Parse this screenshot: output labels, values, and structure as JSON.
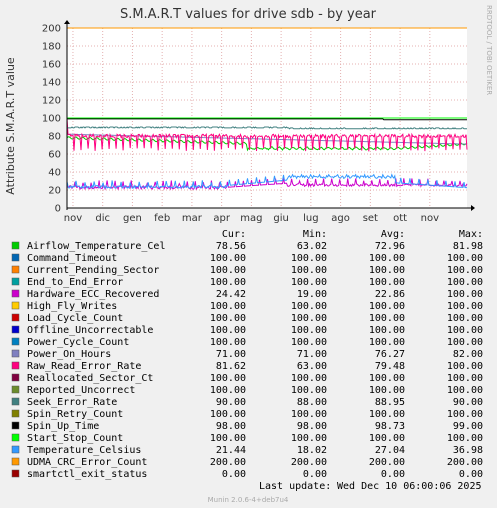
{
  "chart_data": {
    "type": "line",
    "title": "S.M.A.R.T values for drive sdb - by year",
    "ylabel": "Attribute S.M.A.R.T value",
    "xlabel": "",
    "ylim": [
      0,
      200
    ],
    "yticks": [
      0,
      20,
      40,
      60,
      80,
      100,
      120,
      140,
      160,
      180,
      200
    ],
    "grid": true,
    "months": [
      "nov",
      "dic",
      "gen",
      "feb",
      "mar",
      "apr",
      "mag",
      "giu",
      "lug",
      "ago",
      "set",
      "ott",
      "nov"
    ],
    "watermark": "RRDTOOL / TOBI OETIKER",
    "legend_headers": [
      "Cur:",
      "Min:",
      "Avg:",
      "Max:"
    ],
    "series": [
      {
        "name": "Airflow_Temperature_Cel",
        "color": "#00cc00",
        "cur": "78.56",
        "min": "63.02",
        "avg": "72.96",
        "max": "81.98"
      },
      {
        "name": "Command_Timeout",
        "color": "#0066b3",
        "cur": "100.00",
        "min": "100.00",
        "avg": "100.00",
        "max": "100.00"
      },
      {
        "name": "Current_Pending_Sector",
        "color": "#ff8000",
        "cur": "100.00",
        "min": "100.00",
        "avg": "100.00",
        "max": "100.00"
      },
      {
        "name": "End_to_End_Error",
        "color": "#00a0a0",
        "cur": "100.00",
        "min": "100.00",
        "avg": "100.00",
        "max": "100.00"
      },
      {
        "name": "Hardware_ECC_Recovered",
        "color": "#cc00cc",
        "cur": "24.42",
        "min": "19.00",
        "avg": "22.86",
        "max": "100.00"
      },
      {
        "name": "High_Fly_Writes",
        "color": "#ffcc00",
        "cur": "100.00",
        "min": "100.00",
        "avg": "100.00",
        "max": "100.00"
      },
      {
        "name": "Load_Cycle_Count",
        "color": "#cc0000",
        "cur": "100.00",
        "min": "100.00",
        "avg": "100.00",
        "max": "100.00"
      },
      {
        "name": "Offline_Uncorrectable",
        "color": "#0000cc",
        "cur": "100.00",
        "min": "100.00",
        "avg": "100.00",
        "max": "100.00"
      },
      {
        "name": "Power_Cycle_Count",
        "color": "#0080c0",
        "cur": "100.00",
        "min": "100.00",
        "avg": "100.00",
        "max": "100.00"
      },
      {
        "name": "Power_On_Hours",
        "color": "#8080c0",
        "cur": "71.00",
        "min": "71.00",
        "avg": "76.27",
        "max": "82.00"
      },
      {
        "name": "Raw_Read_Error_Rate",
        "color": "#ff0080",
        "cur": "81.62",
        "min": "63.00",
        "avg": "79.48",
        "max": "100.00"
      },
      {
        "name": "Reallocated_Sector_Ct",
        "color": "#800040",
        "cur": "100.00",
        "min": "100.00",
        "avg": "100.00",
        "max": "100.00"
      },
      {
        "name": "Reported_Uncorrect",
        "color": "#6c8c2c",
        "cur": "100.00",
        "min": "100.00",
        "avg": "100.00",
        "max": "100.00"
      },
      {
        "name": "Seek_Error_Rate",
        "color": "#408080",
        "cur": "90.00",
        "min": "88.00",
        "avg": "88.95",
        "max": "90.00"
      },
      {
        "name": "Spin_Retry_Count",
        "color": "#808000",
        "cur": "100.00",
        "min": "100.00",
        "avg": "100.00",
        "max": "100.00"
      },
      {
        "name": "Spin_Up_Time",
        "color": "#000000",
        "cur": "98.00",
        "min": "98.00",
        "avg": "98.73",
        "max": "99.00"
      },
      {
        "name": "Start_Stop_Count",
        "color": "#00ff00",
        "cur": "100.00",
        "min": "100.00",
        "avg": "100.00",
        "max": "100.00"
      },
      {
        "name": "Temperature_Celsius",
        "color": "#3399ff",
        "cur": "21.44",
        "min": "18.02",
        "avg": "27.04",
        "max": "36.98"
      },
      {
        "name": "UDMA_CRC_Error_Count",
        "color": "#ff9900",
        "cur": "200.00",
        "min": "200.00",
        "avg": "200.00",
        "max": "200.00"
      },
      {
        "name": "smartctl_exit_status",
        "color": "#990000",
        "cur": "0.00",
        "min": "0.00",
        "avg": "0.00",
        "max": "0.00"
      }
    ],
    "last_update_label": "Last update:",
    "last_update_value": "Wed Dec 10 06:00:06 2025",
    "footer": "Munin 2.0.6-4+deb7u4"
  }
}
